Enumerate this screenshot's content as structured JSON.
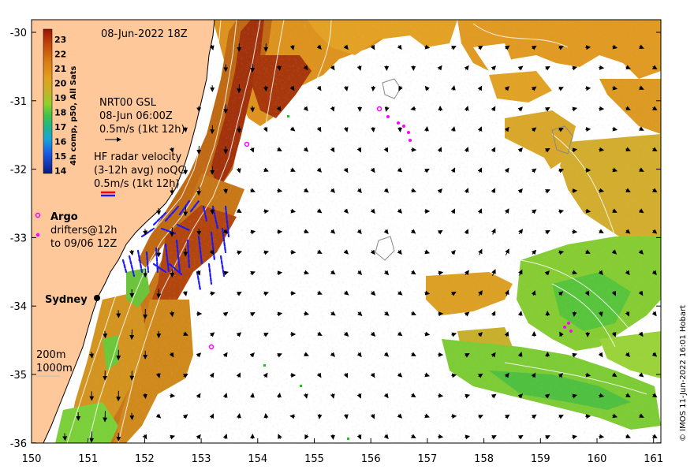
{
  "timestamp": "08-Jun-2022 18Z",
  "credit": "© IMOS 11-Jun-2022 16:01 Hobart",
  "colorbar": {
    "title": "4h comp, p50, All Sats",
    "ticks": [
      "23",
      "22",
      "21",
      "20",
      "19",
      "18",
      "17",
      "16",
      "15",
      "14"
    ],
    "colors": [
      "#a31d05",
      "#c04a0a",
      "#d67a10",
      "#e09d1c",
      "#c9b22a",
      "#9ccc2e",
      "#5fc83a",
      "#2fb86a",
      "#1f9ad0",
      "#1f5ee0",
      "#1a2fb0",
      "#0a1a80"
    ]
  },
  "legend": {
    "nrt_title": "NRT00 GSL",
    "nrt_date": "08-Jun 06:00Z",
    "nrt_scale": "0.5m/s (1kt 12h)",
    "hf_title": "HF radar velocity",
    "hf_avg": "(3-12h avg) noQC",
    "hf_scale": "0.5m/s (1kt 12h)",
    "argo": "Argo",
    "drifters": "drifters@12h",
    "drifters_to": "to 09/06 12Z",
    "city": "Sydney",
    "contour_200": "200m",
    "contour_1000": "1000m"
  },
  "axes": {
    "x_ticks": [
      "150",
      "151",
      "152",
      "153",
      "154",
      "155",
      "156",
      "157",
      "158",
      "159",
      "160",
      "161"
    ],
    "y_ticks": [
      "-30",
      "-31",
      "-32",
      "-33",
      "-34",
      "-35",
      "-36"
    ]
  },
  "colors": {
    "land": "#ffc89a",
    "warm": "#d88a20",
    "hot": "#a83a08",
    "green": "#8fd23a",
    "hf_radar": "#1a1aff",
    "drifter": "#ff00ff"
  }
}
